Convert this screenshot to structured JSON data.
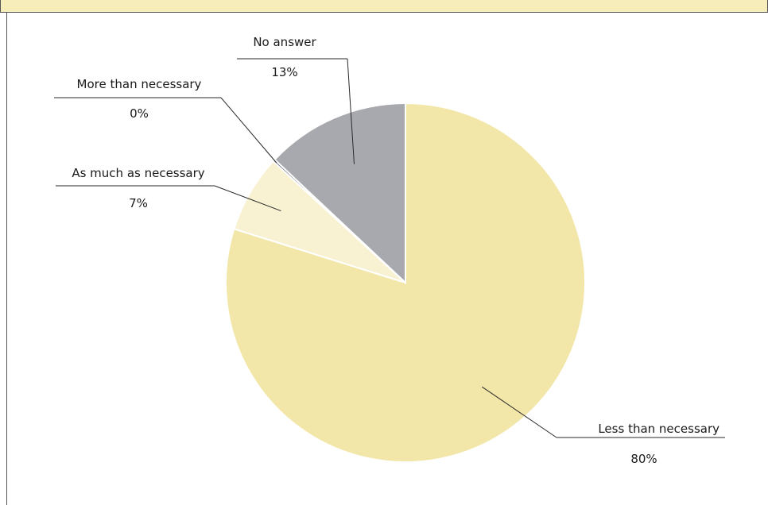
{
  "chart_data": {
    "type": "pie",
    "title": "",
    "slices": [
      {
        "label": "Less than necessary",
        "value": 80,
        "display": "80%",
        "color": "#f2e6a8"
      },
      {
        "label": "As much as necessary",
        "value": 7,
        "display": "7%",
        "color": "#f8f1d2"
      },
      {
        "label": "More than necessary",
        "value": 0,
        "display": "0%",
        "color": "#3d4150"
      },
      {
        "label": "No answer",
        "value": 13,
        "display": "13%",
        "color": "#a7a9ae"
      }
    ],
    "legend": "none",
    "labels": "outside with leader lines"
  },
  "colors": {
    "banner": "#f7edbb",
    "rule": "#555555",
    "slice_border": "#ffffff"
  }
}
